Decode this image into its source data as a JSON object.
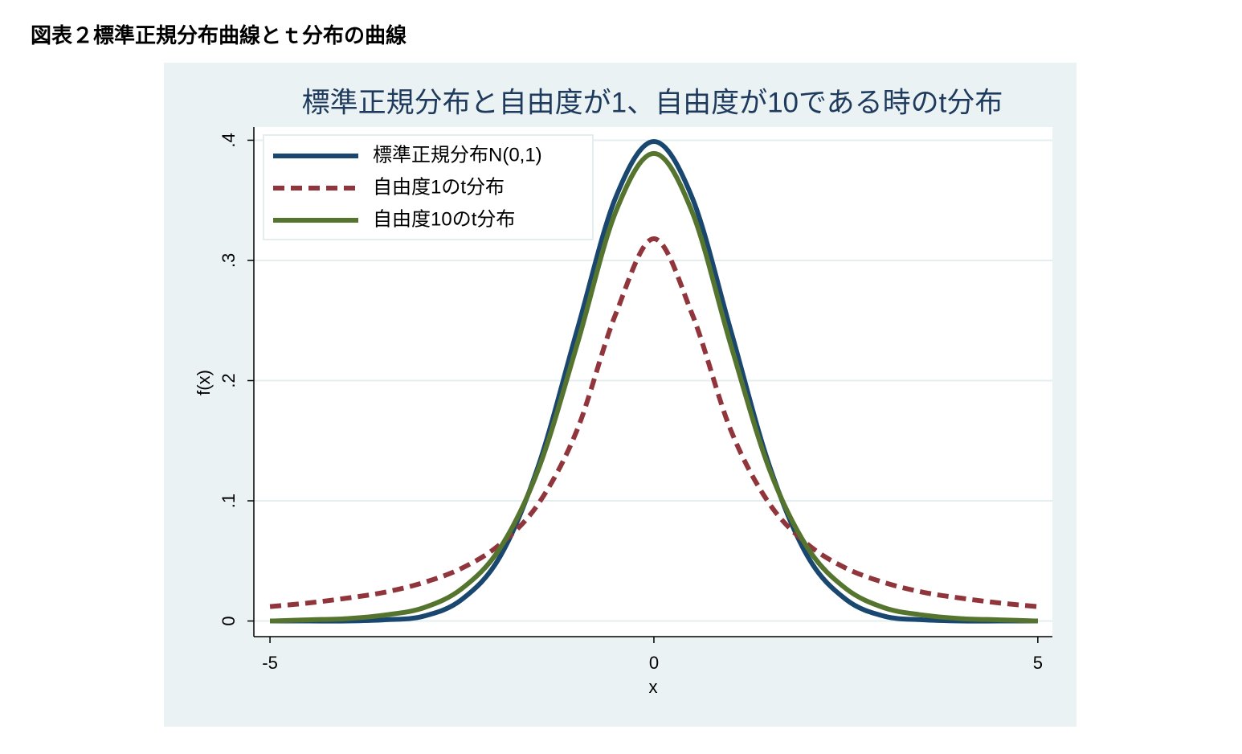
{
  "header": {
    "title": "図表２標準正規分布曲線とｔ分布の曲線"
  },
  "chart_data": {
    "type": "line",
    "title": "標準正規分布と自由度が1、自由度が10である時のt分布",
    "x_label": "x",
    "y_label": "f(x)",
    "x": [
      -5,
      -4.5,
      -4,
      -3.5,
      -3,
      -2.5,
      -2,
      -1.5,
      -1,
      -0.5,
      0,
      0.5,
      1,
      1.5,
      2,
      2.5,
      3,
      3.5,
      4,
      4.5,
      5
    ],
    "series": [
      {
        "name": "標準正規分布N(0,1)",
        "color": "#1a476f",
        "dash": false,
        "values": [
          0.0,
          0.0,
          0.0,
          0.001,
          0.004,
          0.018,
          0.054,
          0.13,
          0.242,
          0.352,
          0.399,
          0.352,
          0.242,
          0.13,
          0.054,
          0.018,
          0.004,
          0.001,
          0.0,
          0.0,
          0.0
        ]
      },
      {
        "name": "自由度1のt分布",
        "color": "#90353b",
        "dash": true,
        "values": [
          0.012,
          0.015,
          0.019,
          0.024,
          0.032,
          0.044,
          0.064,
          0.098,
          0.159,
          0.255,
          0.318,
          0.255,
          0.159,
          0.098,
          0.064,
          0.044,
          0.032,
          0.024,
          0.019,
          0.015,
          0.012
        ]
      },
      {
        "name": "自由度10のt分布",
        "color": "#55752f",
        "dash": false,
        "values": [
          0.0,
          0.001,
          0.002,
          0.005,
          0.011,
          0.027,
          0.061,
          0.127,
          0.23,
          0.34,
          0.389,
          0.34,
          0.23,
          0.127,
          0.061,
          0.027,
          0.011,
          0.005,
          0.002,
          0.001,
          0.0
        ]
      }
    ],
    "xlim": [
      -5.21,
      5.19
    ],
    "ylim": [
      -0.013,
      0.411
    ],
    "xticks": [
      -5,
      0,
      5
    ],
    "yticks": [
      0,
      {
        "value": 0.1,
        "label": ".1"
      },
      {
        "value": 0.2,
        "label": ".2"
      },
      {
        "value": 0.3,
        "label": ".3"
      },
      {
        "value": 0.4,
        "label": ".4"
      }
    ],
    "grid": true,
    "legend": "top-left"
  }
}
